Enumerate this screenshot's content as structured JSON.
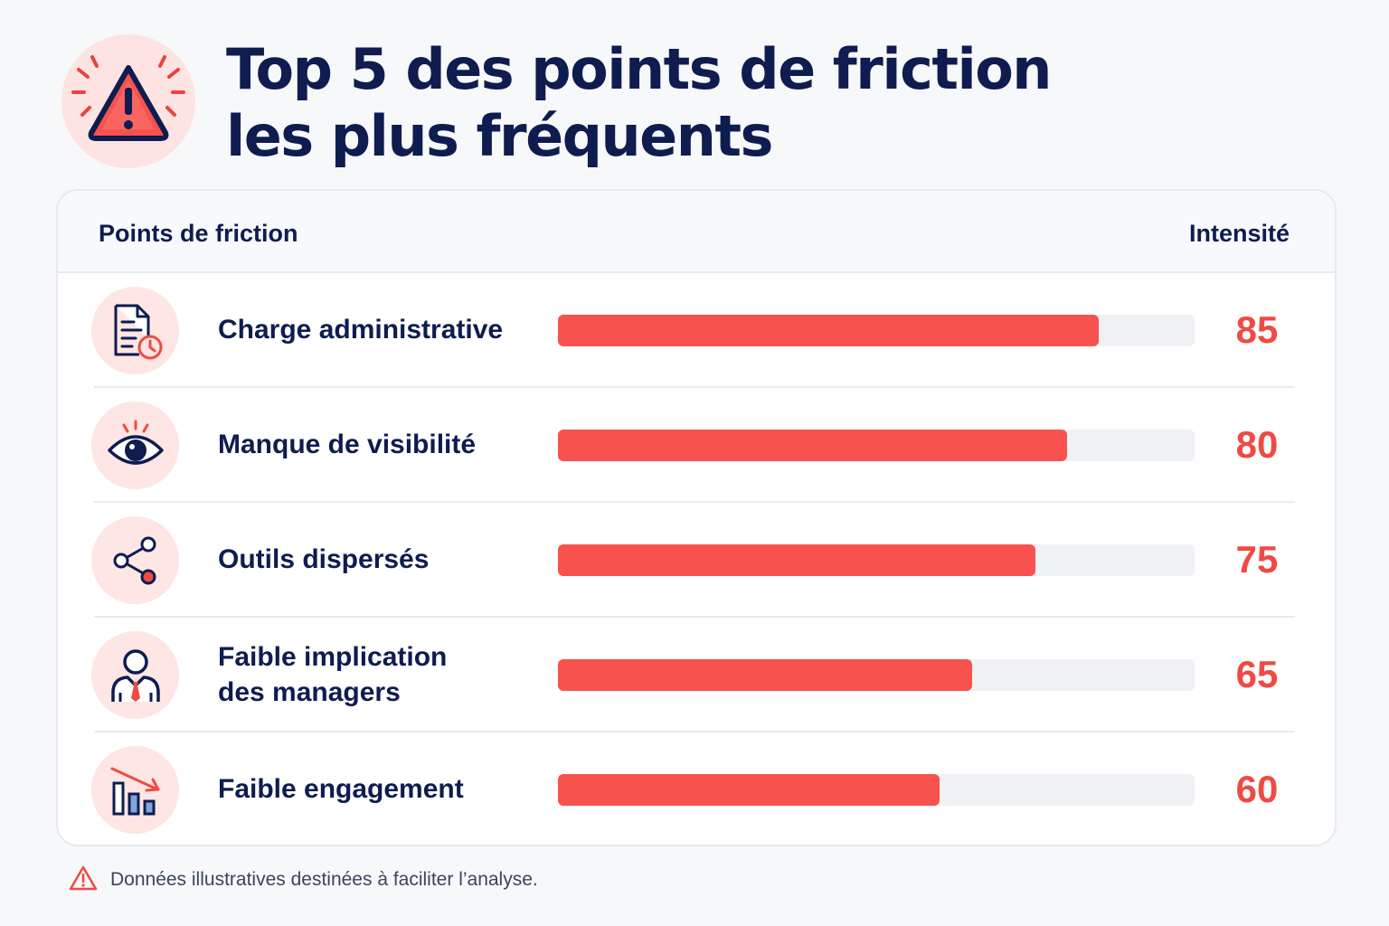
{
  "title": {
    "line1": "Top 5 des points de friction",
    "line2": "les plus fréquents"
  },
  "header_icon": "warning-triangle-icon",
  "table": {
    "col_left": "Points de friction",
    "col_right": "Intensité"
  },
  "chart_data": {
    "type": "bar",
    "orientation": "horizontal",
    "xlim": [
      0,
      100
    ],
    "categories": [
      "Charge administrative",
      "Manque de visibilité",
      "Outils dispersés",
      "Faible implication des managers",
      "Faible engagement"
    ],
    "values": [
      85,
      80,
      75,
      65,
      60
    ],
    "value_labels": [
      "85",
      "80",
      "75",
      "65",
      "60"
    ],
    "label_lines": [
      [
        "Charge administrative"
      ],
      [
        "Manque de visibilité"
      ],
      [
        "Outils dispersés"
      ],
      [
        "Faible implication",
        "des managers"
      ],
      [
        "Faible engagement"
      ]
    ],
    "icons": [
      "document-clock-icon",
      "eye-icon",
      "share-nodes-icon",
      "manager-icon",
      "declining-chart-icon"
    ],
    "colors": {
      "bar": "#f7524d",
      "track": "#eff1f5",
      "value": "#ef4a43"
    }
  },
  "footer": {
    "icon": "warning-icon",
    "text": "Données illustratives destinées à faciliter l’analyse."
  }
}
